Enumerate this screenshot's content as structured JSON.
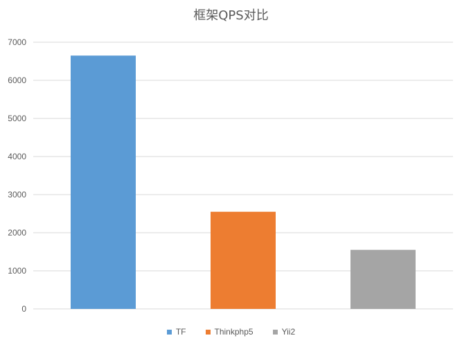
{
  "chart_data": {
    "type": "bar",
    "title": "框架QPS对比",
    "xlabel": "",
    "ylabel": "",
    "ylim": [
      0,
      7000
    ],
    "yticks": [
      0,
      1000,
      2000,
      3000,
      4000,
      5000,
      6000,
      7000
    ],
    "grid": true,
    "legend_position": "bottom",
    "series": [
      {
        "name": "TF",
        "color": "#5B9BD5",
        "values": [
          6650
        ]
      },
      {
        "name": "Thinkphp5",
        "color": "#ED7D31",
        "values": [
          2550
        ]
      },
      {
        "name": "Yii2",
        "color": "#A5A5A5",
        "values": [
          1550
        ]
      }
    ]
  }
}
